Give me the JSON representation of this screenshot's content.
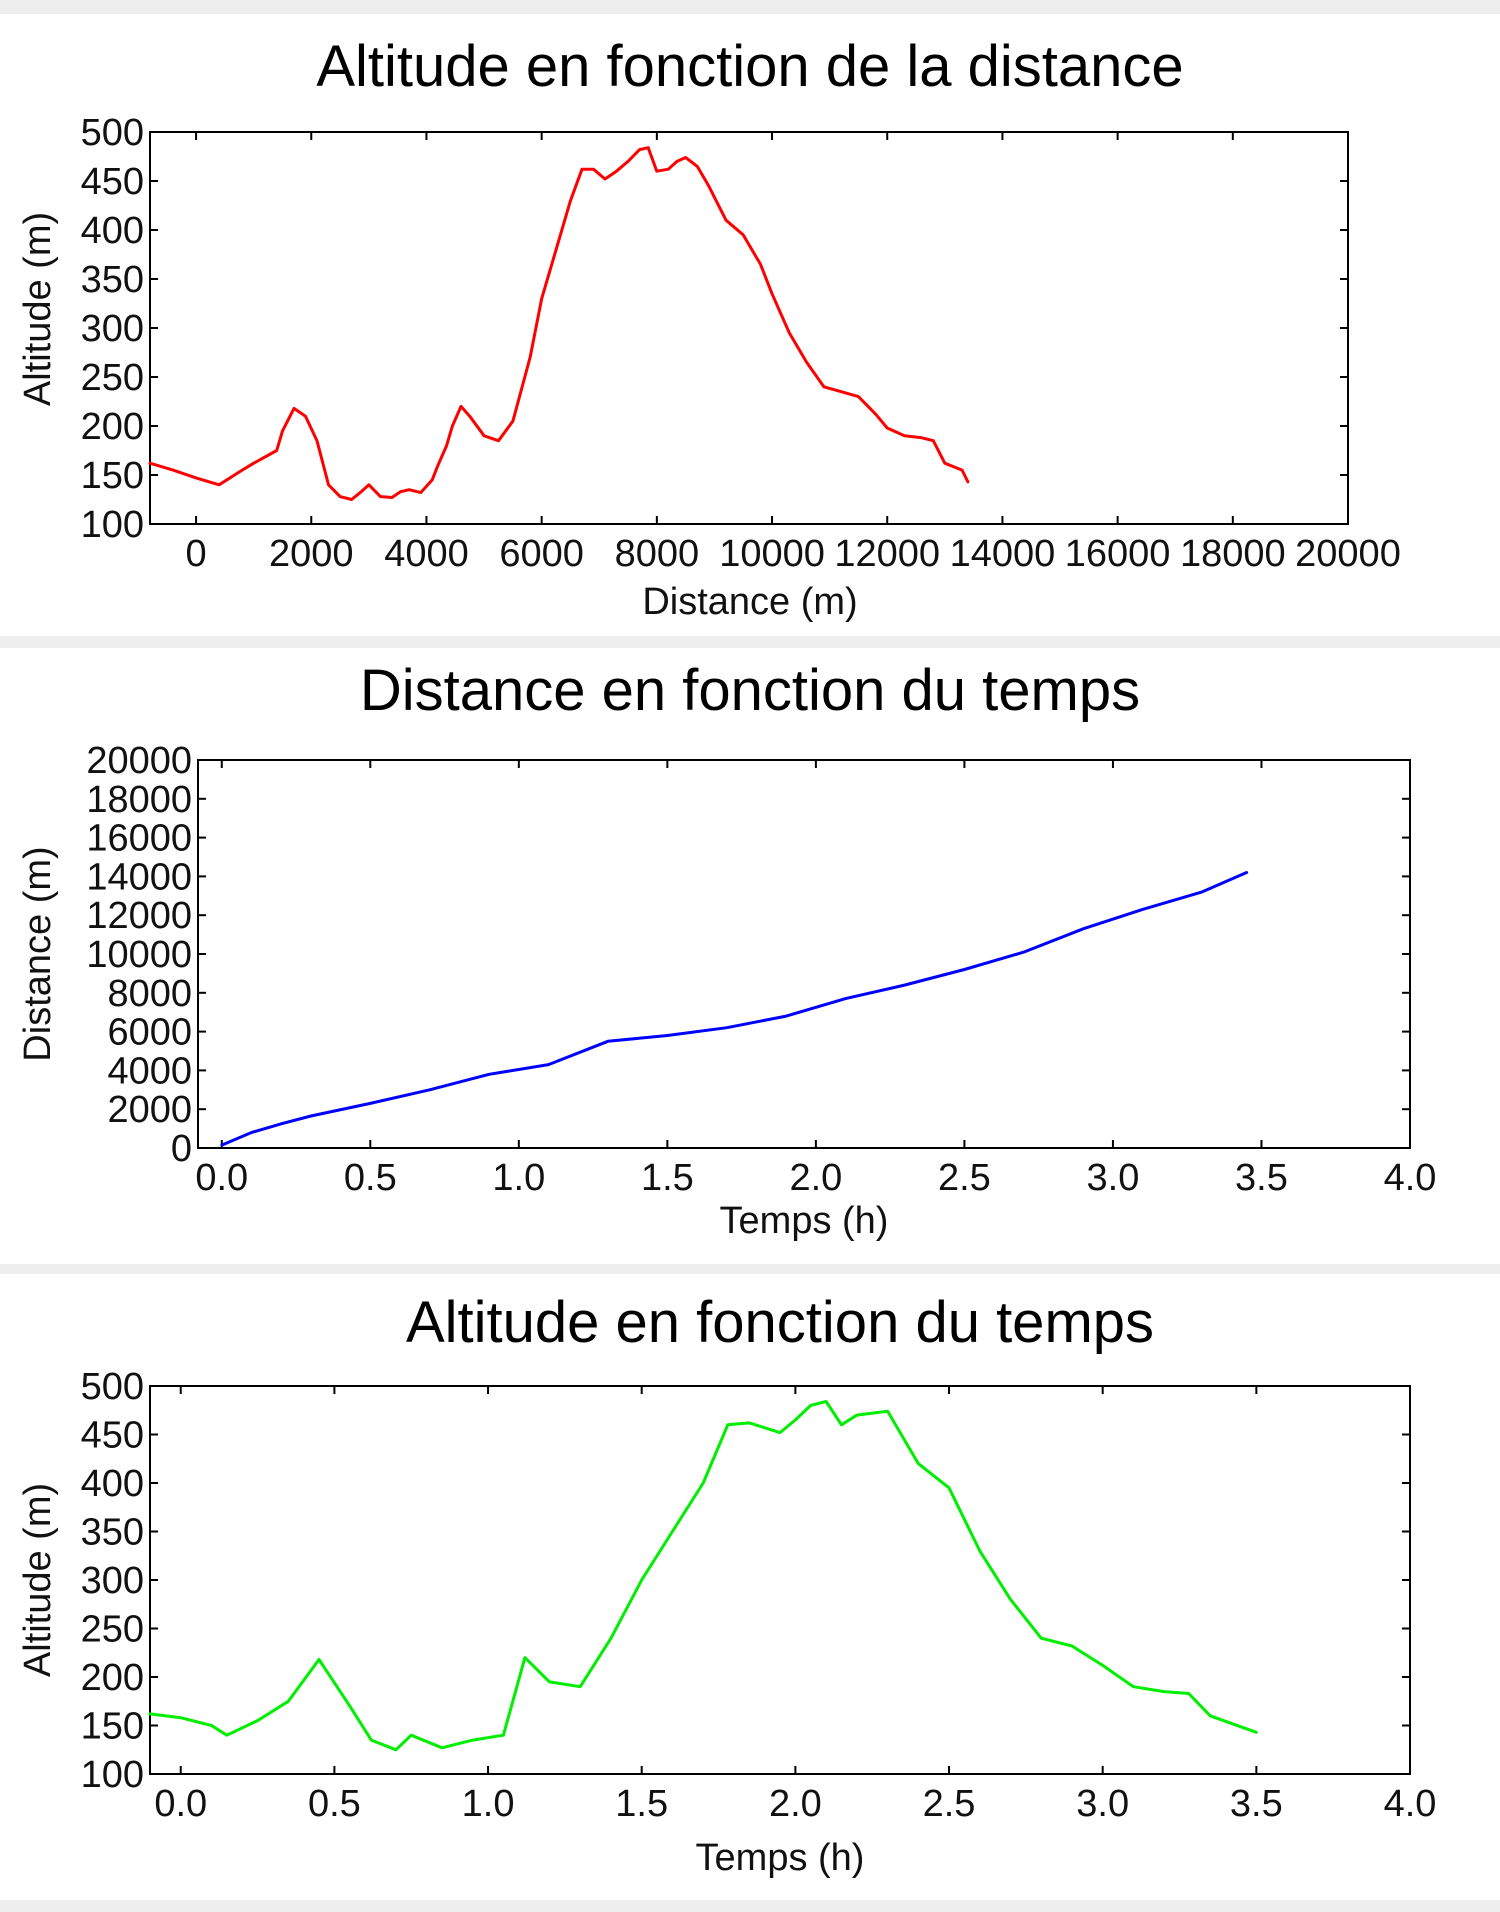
{
  "chart_data": [
    {
      "type": "line",
      "title": "Altitude en fonction de la distance",
      "xlabel": "Distance (m)",
      "ylabel": "Altitude (m)",
      "xlim": [
        -800,
        20000
      ],
      "ylim": [
        100,
        500
      ],
      "xticks": [
        0,
        2000,
        4000,
        6000,
        8000,
        10000,
        12000,
        14000,
        16000,
        18000,
        20000
      ],
      "xtick_labels": [
        "0",
        "2000",
        "4000",
        "6000",
        "8000",
        "10000",
        "12000",
        "14000",
        "16000",
        "18000",
        "20000"
      ],
      "yticks": [
        100,
        150,
        200,
        250,
        300,
        350,
        400,
        450,
        500
      ],
      "ytick_labels": [
        "100",
        "150",
        "200",
        "250",
        "300",
        "350",
        "400",
        "450",
        "500"
      ],
      "grid": false,
      "color": "#ff0000",
      "series": [
        {
          "x": [
            -800,
            -400,
            0,
            400,
            800,
            1000,
            1400,
            1500,
            1700,
            1900,
            2100,
            2300,
            2500,
            2700,
            2850,
            3000,
            3200,
            3400,
            3550,
            3700,
            3900,
            4100,
            4200,
            4350,
            4450,
            4600,
            4750,
            5000,
            5250,
            5500,
            5800,
            6000,
            6250,
            6500,
            6700,
            6900,
            7100,
            7300,
            7500,
            7700,
            7850,
            8000,
            8200,
            8350,
            8500,
            8700,
            8900,
            9200,
            9500,
            9800,
            10000,
            10300,
            10600,
            10900,
            11200,
            11500,
            11800,
            12000,
            12300,
            12600,
            12800,
            13000,
            13300,
            13400
          ],
          "y": [
            162,
            155,
            147,
            140,
            155,
            162,
            175,
            195,
            218,
            210,
            185,
            140,
            128,
            125,
            132,
            140,
            128,
            127,
            133,
            135,
            132,
            145,
            160,
            180,
            200,
            220,
            210,
            190,
            185,
            205,
            270,
            330,
            380,
            430,
            462,
            462,
            452,
            460,
            470,
            482,
            484,
            460,
            462,
            470,
            474,
            465,
            445,
            410,
            395,
            365,
            335,
            295,
            265,
            240,
            235,
            230,
            212,
            198,
            190,
            188,
            185,
            162,
            155,
            143
          ]
        }
      ]
    },
    {
      "type": "line",
      "title": "Distance en fonction du temps",
      "xlabel": "Temps (h)",
      "ylabel": "Distance (m)",
      "xlim": [
        -0.08,
        4.0
      ],
      "ylim": [
        0,
        20000
      ],
      "xticks": [
        0.0,
        0.5,
        1.0,
        1.5,
        2.0,
        2.5,
        3.0,
        3.5,
        4.0
      ],
      "xtick_labels": [
        "0.0",
        "0.5",
        "1.0",
        "1.5",
        "2.0",
        "2.5",
        "3.0",
        "3.5",
        "4.0"
      ],
      "yticks": [
        0,
        2000,
        4000,
        6000,
        8000,
        10000,
        12000,
        14000,
        16000,
        18000,
        20000
      ],
      "ytick_labels": [
        "0",
        "2000",
        "4000",
        "6000",
        "8000",
        "10000",
        "12000",
        "14000",
        "16000",
        "18000",
        "20000"
      ],
      "grid": false,
      "color": "#0000ff",
      "series": [
        {
          "x": [
            0.0,
            0.1,
            0.2,
            0.3,
            0.5,
            0.7,
            0.9,
            1.1,
            1.3,
            1.5,
            1.7,
            1.9,
            2.1,
            2.3,
            2.5,
            2.7,
            2.9,
            3.1,
            3.3,
            3.45
          ],
          "y": [
            150,
            800,
            1250,
            1650,
            2300,
            3000,
            3800,
            4300,
            5500,
            5800,
            6200,
            6800,
            7700,
            8400,
            9200,
            10100,
            11300,
            12300,
            13200,
            14200
          ]
        }
      ]
    },
    {
      "type": "line",
      "title": "Altitude en fonction du temps",
      "xlabel": "Temps (h)",
      "ylabel": "Altitude (m)",
      "xlim": [
        -0.1,
        4.0
      ],
      "ylim": [
        100,
        500
      ],
      "xticks": [
        0.0,
        0.5,
        1.0,
        1.5,
        2.0,
        2.5,
        3.0,
        3.5,
        4.0
      ],
      "xtick_labels": [
        "0.0",
        "0.5",
        "1.0",
        "1.5",
        "2.0",
        "2.5",
        "3.0",
        "3.5",
        "4.0"
      ],
      "yticks": [
        100,
        150,
        200,
        250,
        300,
        350,
        400,
        450,
        500
      ],
      "ytick_labels": [
        "100",
        "150",
        "200",
        "250",
        "300",
        "350",
        "400",
        "450",
        "500"
      ],
      "grid": false,
      "color": "#00ee00",
      "series": [
        {
          "x": [
            -0.1,
            0.0,
            0.1,
            0.15,
            0.25,
            0.35,
            0.45,
            0.55,
            0.62,
            0.7,
            0.75,
            0.85,
            0.95,
            1.05,
            1.12,
            1.2,
            1.3,
            1.4,
            1.5,
            1.6,
            1.7,
            1.78,
            1.85,
            1.95,
            2.0,
            2.05,
            2.1,
            2.15,
            2.2,
            2.3,
            2.4,
            2.5,
            2.6,
            2.7,
            2.8,
            2.9,
            3.0,
            3.1,
            3.2,
            3.28,
            3.35,
            3.5
          ],
          "y": [
            162,
            158,
            150,
            140,
            155,
            175,
            218,
            170,
            135,
            125,
            140,
            127,
            135,
            140,
            220,
            195,
            190,
            240,
            300,
            350,
            400,
            460,
            462,
            452,
            465,
            480,
            484,
            460,
            470,
            474,
            420,
            395,
            330,
            280,
            240,
            232,
            212,
            190,
            185,
            183,
            160,
            143
          ]
        }
      ]
    }
  ]
}
